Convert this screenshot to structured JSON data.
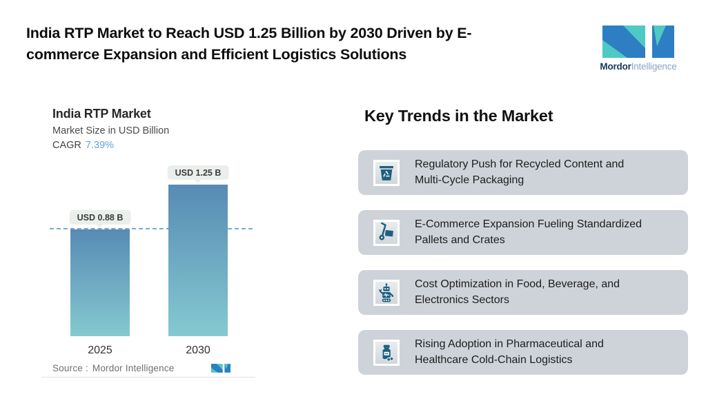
{
  "header": {
    "title_line1": "India RTP Market to Reach USD 1.25 Billion by 2030 Driven by E-",
    "title_line2": "commerce Expansion and Efficient Logistics Solutions",
    "brand": {
      "name_bold": "Mordor",
      "name_light": "Intelligence"
    }
  },
  "chart": {
    "title": "India RTP Market",
    "subtitle": "Market Size in USD Billion",
    "cagr_label": "CAGR",
    "cagr_value": "7.39%",
    "source_label": "Source :",
    "source_value": "Mordor Intelligence"
  },
  "chart_data": {
    "type": "bar",
    "title": "India RTP Market",
    "ylabel": "Market Size in USD Billion",
    "categories": [
      "2025",
      "2030"
    ],
    "values": [
      0.88,
      1.25
    ],
    "value_labels": [
      "USD 0.88 B",
      "USD 1.25 B"
    ],
    "cagr": "7.39%",
    "ylim": [
      0,
      1.25
    ],
    "reference_line": 0.88,
    "grid": false,
    "bar_colors": [
      "#578bb4",
      "#85c9d0"
    ],
    "dashed_line_color": "#7aa7ce"
  },
  "trends": {
    "heading": "Key Trends in the Market",
    "items": [
      {
        "icon": "recycle-bin-icon",
        "line1": "Regulatory Push for Recycled Content and",
        "line2": "Multi-Cycle Packaging",
        "text": "Regulatory Push for Recycled Content and Multi-Cycle Packaging"
      },
      {
        "icon": "hand-truck-icon",
        "line1": "E-Commerce Expansion Fueling Standardized",
        "line2": "Pallets and Crates",
        "text": "E-Commerce Expansion Fueling Standardized Pallets and Crates"
      },
      {
        "icon": "robot-icon",
        "line1": "Cost Optimization in Food, Beverage, and",
        "line2": "Electronics Sectors",
        "text": "Cost Optimization in Food, Beverage, and Electronics Sectors"
      },
      {
        "icon": "pill-bottle-icon",
        "line1": "Rising Adoption in Pharmaceutical and",
        "line2": "Healthcare Cold-Chain Logistics",
        "text": "Rising Adoption in Pharmaceutical and Healthcare Cold-Chain Logistics"
      }
    ]
  },
  "colors": {
    "logo_teal": "#4ec9c4",
    "logo_blue": "#2d7ec3",
    "icon_teal": "#1e6080",
    "trend_card_bg": "#ced3d9",
    "pill_bg": "#eaefec"
  }
}
